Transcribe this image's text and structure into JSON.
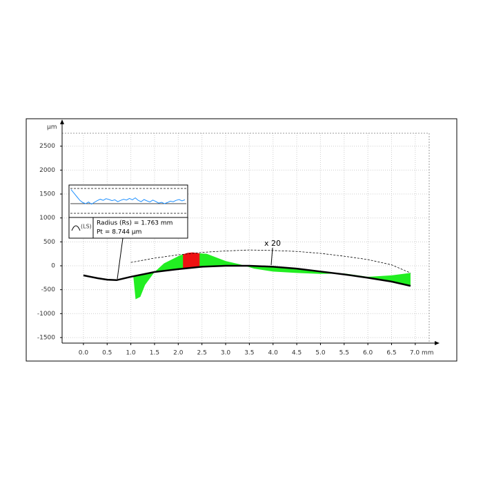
{
  "chart_data": {
    "type": "profile",
    "y_label": "µm",
    "xlim": [
      -0.45,
      7.41
    ],
    "ylim": [
      -1616,
      2958
    ],
    "xticks": [
      {
        "value": 0,
        "label": "0.0"
      },
      0.5,
      {
        "value": 1,
        "label": "1.0"
      },
      1.5,
      {
        "value": 2,
        "label": "2.0"
      },
      2.5,
      {
        "value": 3,
        "label": "3.0"
      },
      3.5,
      {
        "value": 4,
        "label": "4.0"
      },
      4.5,
      {
        "value": 5,
        "label": "5.0"
      },
      5.5,
      {
        "value": 6,
        "label": "6.0"
      },
      6.5,
      {
        "value": 7,
        "label": "7.0 mm"
      }
    ],
    "yticks": [
      -1500,
      -1000,
      -500,
      0,
      500,
      1000,
      1500,
      2000,
      2500
    ],
    "grid": true,
    "profile": {
      "color": "#000000",
      "x": [
        0,
        0.3,
        0.5,
        0.7,
        1.0,
        1.5,
        2.0,
        2.5,
        3.0,
        3.5,
        4.0,
        4.5,
        5.0,
        5.5,
        6.0,
        6.5,
        6.9
      ],
      "values": [
        -200,
        -260,
        -290,
        -300,
        -230,
        -130,
        -70,
        -20,
        0,
        0,
        -20,
        -60,
        -120,
        -180,
        -250,
        -330,
        -420
      ]
    },
    "deviation": {
      "color": "#22ee22",
      "x": [
        1.05,
        1.1,
        1.2,
        1.3,
        1.5,
        1.7,
        2.0,
        2.1,
        2.45,
        2.6,
        3.0,
        3.3,
        3.6,
        4.0,
        4.5,
        5.0,
        5.5,
        6.0,
        6.5,
        6.9
      ],
      "values": [
        -200,
        -700,
        -650,
        -400,
        -130,
        50,
        200,
        240,
        260,
        250,
        100,
        30,
        -60,
        -120,
        -150,
        -170,
        -160,
        -230,
        -200,
        -150
      ]
    },
    "out_of_tolerance": {
      "color": "#ee1111",
      "x": [
        2.1,
        2.2,
        2.3,
        2.45
      ],
      "values": [
        240,
        270,
        280,
        260
      ]
    },
    "tolerance": {
      "color": "#000000",
      "x": [
        1.0,
        1.5,
        2.0,
        2.5,
        3.0,
        3.5,
        4.0,
        4.5,
        5.0,
        5.5,
        6.0,
        6.5,
        6.9
      ],
      "values": [
        70,
        160,
        230,
        280,
        310,
        330,
        320,
        300,
        260,
        200,
        130,
        20,
        -150
      ]
    },
    "magnification_label": "x 20",
    "inset": {
      "color": "#1e90ff",
      "ylim": [
        -5,
        5
      ],
      "values": [
        4.1,
        2.8,
        1.5,
        0.2,
        -0.6,
        -1.0,
        -0.4,
        -1.2,
        -0.5,
        0.1,
        0.6,
        0.2,
        0.8,
        0.5,
        0.1,
        0.4,
        -0.3,
        0.2,
        0.6,
        0.3,
        0.9,
        0.4,
        1.1,
        0.2,
        -0.3,
        0.5,
        0.0,
        -0.4,
        0.3,
        -0.2,
        -0.8,
        -0.5,
        -1.0,
        -0.6,
        -0.1,
        -0.3,
        0.2,
        0.5,
        0.0,
        0.4
      ],
      "filter": "(LS)",
      "radius_text": "Radius (Rs) = 1.763 mm",
      "pt_text": "Pt = 8.744 µm"
    }
  }
}
